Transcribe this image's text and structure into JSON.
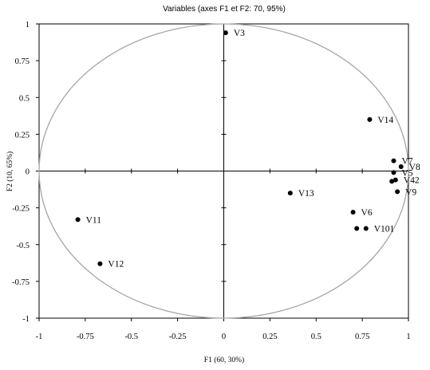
{
  "chart_data": {
    "type": "scatter",
    "title": "Variables (axes F1 et F2: 70, 95%)",
    "xlabel": "F1 (60, 30%)",
    "ylabel": "F2 (10, 65%)",
    "xlim": [
      -1,
      1
    ],
    "ylim": [
      -1,
      1
    ],
    "xticks": [
      "-1",
      "-0.75",
      "-0.5",
      "-0.25",
      "0",
      "0.25",
      "0.5",
      "0.75",
      "1"
    ],
    "yticks": [
      "1",
      "0.75",
      "0.5",
      "0.25",
      "0",
      "-0.25",
      "-0.5",
      "-0.75",
      "-1"
    ],
    "grid": false,
    "correlation_circle": true,
    "points": [
      {
        "label": "V3",
        "x": 0.01,
        "y": 0.94
      },
      {
        "label": "V14",
        "x": 0.79,
        "y": 0.35
      },
      {
        "label": "V7",
        "x": 0.92,
        "y": 0.07
      },
      {
        "label": "V8",
        "x": 0.96,
        "y": 0.03
      },
      {
        "label": "V5",
        "x": 0.92,
        "y": -0.01
      },
      {
        "label": "V42",
        "x": 0.93,
        "y": -0.06
      },
      {
        "label": "",
        "x": 0.91,
        "y": -0.07
      },
      {
        "label": "V9",
        "x": 0.94,
        "y": -0.14
      },
      {
        "label": "V13",
        "x": 0.36,
        "y": -0.15
      },
      {
        "label": "V6",
        "x": 0.7,
        "y": -0.28
      },
      {
        "label": "V101",
        "x": 0.77,
        "y": -0.39
      },
      {
        "label": "",
        "x": 0.72,
        "y": -0.39
      },
      {
        "label": "V11",
        "x": -0.79,
        "y": -0.33
      },
      {
        "label": "V12",
        "x": -0.67,
        "y": -0.63
      }
    ]
  }
}
